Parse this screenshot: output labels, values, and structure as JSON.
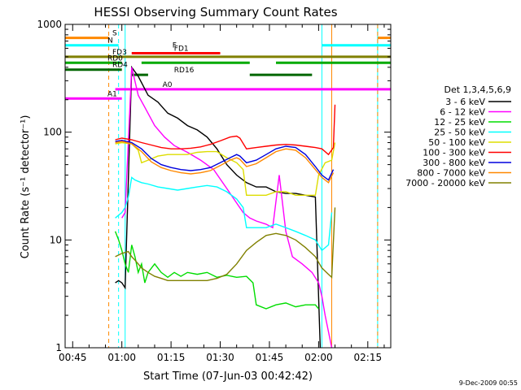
{
  "chart_data": {
    "type": "line",
    "title": "HESSI Observing Summary Count Rates",
    "xlabel": "Start Time (07-Jun-03 00:42:42)",
    "ylabel": "Count Rate (s⁻¹ detector⁻¹)",
    "ylog": true,
    "ylim": [
      1,
      1000
    ],
    "xlim_minutes": [
      42.7,
      142
    ],
    "x_ticks": [
      "00:45",
      "01:00",
      "01:15",
      "01:30",
      "01:45",
      "02:00",
      "02:15"
    ],
    "y_ticks": [
      "1",
      "10",
      "100",
      "1000"
    ],
    "footer_date": "9-Dec-2009 00:55",
    "legend": {
      "title": "Det 1,3,4,5,6,9",
      "placement": "right"
    },
    "series": [
      {
        "name": "3 - 6 keV",
        "color": "#000000",
        "x": [
          58,
          59,
          60,
          60.5,
          61,
          63,
          65,
          68,
          71,
          74,
          77,
          80,
          83,
          86,
          89,
          92,
          95,
          98,
          101,
          104,
          107,
          110,
          113,
          116,
          119,
          120.5
        ],
        "y": [
          4,
          4.2,
          4,
          3.8,
          3.6,
          400,
          330,
          220,
          190,
          150,
          135,
          115,
          105,
          90,
          70,
          50,
          40,
          34,
          31,
          31,
          28,
          27,
          27,
          26,
          25,
          1
        ]
      },
      {
        "name": "6 - 12 keV",
        "color": "#ff00ff",
        "x": [
          60,
          61,
          63,
          65,
          67,
          70,
          73,
          76,
          80,
          84,
          88,
          92,
          95,
          97,
          99,
          101,
          104,
          106,
          108,
          110,
          112,
          115,
          118,
          120,
          121,
          122,
          124
        ],
        "y": [
          16,
          18,
          400,
          220,
          170,
          115,
          90,
          75,
          65,
          55,
          45,
          30,
          22,
          18,
          16,
          15,
          14,
          13,
          40,
          12,
          7,
          6,
          5,
          4,
          3,
          2,
          1
        ]
      },
      {
        "name": "12 - 25 keV",
        "color": "#00dd00",
        "x": [
          58,
          59,
          60,
          61,
          62,
          63,
          64,
          65,
          66,
          67,
          68,
          70,
          72,
          74,
          76,
          78,
          80,
          83,
          86,
          89,
          92,
          95,
          98,
          100,
          101,
          104,
          107,
          110,
          113,
          116,
          119,
          120
        ],
        "y": [
          12,
          10,
          8,
          6,
          5,
          9,
          7,
          5,
          6,
          4,
          5,
          6,
          5,
          4.5,
          5,
          4.6,
          5,
          4.8,
          5,
          4.5,
          4.7,
          4.5,
          4.6,
          4,
          2.5,
          2.3,
          2.5,
          2.6,
          2.4,
          2.5,
          2.5,
          2.3
        ]
      },
      {
        "name": "25 - 50 keV",
        "color": "#00ffff",
        "x": [
          58,
          60,
          61,
          62,
          63,
          64,
          65,
          66,
          68,
          71,
          74,
          77,
          80,
          83,
          86,
          89,
          92,
          95,
          97,
          98,
          101,
          104,
          107,
          110,
          113,
          116,
          119,
          121,
          123,
          124
        ],
        "y": [
          16,
          18,
          20,
          25,
          38,
          36,
          35,
          34,
          33,
          31,
          30,
          29,
          30,
          31,
          32,
          31,
          28,
          24,
          20,
          13,
          13,
          13,
          14,
          13,
          12,
          11,
          10,
          8,
          9,
          18
        ]
      },
      {
        "name": "50 - 100 keV",
        "color": "#dddd00",
        "x": [
          58,
          60,
          63,
          65,
          66,
          68,
          71,
          74,
          77,
          80,
          83,
          86,
          89,
          92,
          95,
          97,
          98,
          101,
          104,
          107,
          110,
          113,
          116,
          119,
          120,
          122,
          124,
          125
        ],
        "y": [
          78,
          80,
          78,
          68,
          52,
          55,
          60,
          62,
          62,
          62,
          65,
          66,
          66,
          58,
          52,
          45,
          26,
          26,
          26,
          28,
          28,
          26,
          26,
          26,
          40,
          52,
          55,
          80
        ]
      },
      {
        "name": "100 - 300 keV",
        "color": "#ff0000",
        "x": [
          58,
          60,
          63,
          66,
          69,
          72,
          75,
          78,
          81,
          84,
          87,
          90,
          93,
          95,
          96,
          98,
          101,
          104,
          107,
          110,
          113,
          116,
          119,
          121,
          123,
          124.5,
          125
        ],
        "y": [
          85,
          88,
          85,
          80,
          76,
          72,
          70,
          70,
          71,
          73,
          77,
          83,
          90,
          92,
          88,
          70,
          72,
          74,
          76,
          77,
          76,
          74,
          72,
          70,
          62,
          72,
          180
        ]
      },
      {
        "name": "300 - 800 keV",
        "color": "#0000dd",
        "x": [
          58,
          60,
          63,
          66,
          69,
          72,
          75,
          78,
          81,
          84,
          87,
          90,
          93,
          95,
          96,
          98,
          101,
          104,
          107,
          110,
          113,
          116,
          119,
          121,
          123,
          124.5
        ],
        "y": [
          82,
          84,
          80,
          70,
          57,
          50,
          47,
          45,
          44,
          45,
          47,
          52,
          58,
          62,
          60,
          52,
          55,
          62,
          70,
          74,
          72,
          62,
          48,
          40,
          36,
          45
        ]
      },
      {
        "name": "800 - 7000 keV",
        "color": "#ff8800",
        "x": [
          58,
          60,
          63,
          66,
          69,
          72,
          75,
          78,
          81,
          84,
          87,
          90,
          93,
          95,
          96,
          98,
          101,
          104,
          107,
          110,
          113,
          116,
          119,
          121,
          123,
          124.5
        ],
        "y": [
          80,
          82,
          78,
          66,
          53,
          47,
          44,
          42,
          41,
          42,
          44,
          49,
          55,
          58,
          56,
          48,
          51,
          58,
          66,
          70,
          68,
          58,
          45,
          38,
          34,
          42
        ]
      },
      {
        "name": "7000 - 20000 keV",
        "color": "#808000",
        "x": [
          58,
          60,
          62,
          63,
          64,
          65,
          66,
          68,
          70,
          72,
          74,
          76,
          78,
          80,
          83,
          86,
          89,
          92,
          95,
          98,
          101,
          104,
          107,
          110,
          113,
          116,
          119,
          121,
          123,
          124,
          125
        ],
        "y": [
          7,
          7.5,
          7.8,
          7,
          6.5,
          6,
          5.5,
          5,
          4.6,
          4.4,
          4.2,
          4.2,
          4.2,
          4.2,
          4.2,
          4.2,
          4.4,
          4.8,
          6,
          8,
          9.5,
          11,
          11.5,
          11,
          10,
          8.5,
          7,
          5.5,
          4.8,
          4.5,
          20
        ]
      }
    ],
    "state_bars": [
      {
        "label": "S",
        "color": "#ff8800",
        "y": 750,
        "segments": [
          [
            42.7,
            56
          ],
          [
            138,
            142
          ]
        ]
      },
      {
        "label": "N",
        "color": "#00ffff",
        "y": 640,
        "segments": [
          [
            42.7,
            59
          ],
          [
            121,
            142
          ]
        ]
      },
      {
        "label": "F",
        "color": "#cc00cc",
        "y": 580,
        "segments": []
      },
      {
        "label": "FD1",
        "color": "#ff0000",
        "y": 540,
        "segments": [
          [
            63,
            90
          ]
        ]
      },
      {
        "label": "FD3",
        "color": "#808000",
        "y": 500,
        "segments": [
          [
            42.7,
            58
          ],
          [
            58,
            142
          ]
        ]
      },
      {
        "label": "RD0",
        "color": "#00aa00",
        "y": 440,
        "segments": [
          [
            42.7,
            60
          ],
          [
            66,
            99
          ],
          [
            107,
            142
          ]
        ]
      },
      {
        "label": "RD4",
        "color": "#006600",
        "y": 380,
        "segments": [
          [
            42.7,
            60
          ]
        ]
      },
      {
        "label": "RD16",
        "color": "#006600",
        "y": 340,
        "segments": [
          [
            63,
            68
          ],
          [
            99,
            118
          ]
        ]
      },
      {
        "label": "A0",
        "color": "#ff00ff",
        "y": 250,
        "segments": [
          [
            58,
            142
          ]
        ]
      },
      {
        "label": "A1",
        "color": "#ff00ff",
        "y": 205,
        "segments": [
          [
            42.7,
            60
          ]
        ]
      }
    ],
    "markers": [
      {
        "color": "#ff8800",
        "style": "dashed",
        "x": 56
      },
      {
        "color": "#00ffff",
        "style": "dashed",
        "x": 59
      },
      {
        "color": "#00ffff",
        "style": "solid",
        "x": 61
      },
      {
        "color": "#00ffff",
        "style": "solid",
        "x": 121
      },
      {
        "color": "#00ffff",
        "style": "solid",
        "x": 138
      },
      {
        "color": "#ff8800",
        "style": "solid",
        "x": 124
      },
      {
        "color": "#ff8800",
        "style": "dashed",
        "x": 138
      }
    ]
  }
}
